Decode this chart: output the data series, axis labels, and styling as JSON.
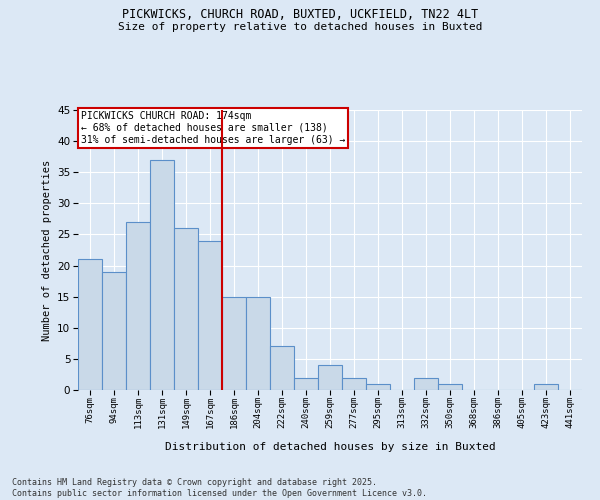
{
  "title_line1": "PICKWICKS, CHURCH ROAD, BUXTED, UCKFIELD, TN22 4LT",
  "title_line2": "Size of property relative to detached houses in Buxted",
  "xlabel": "Distribution of detached houses by size in Buxted",
  "ylabel": "Number of detached properties",
  "categories": [
    "76sqm",
    "94sqm",
    "113sqm",
    "131sqm",
    "149sqm",
    "167sqm",
    "186sqm",
    "204sqm",
    "222sqm",
    "240sqm",
    "259sqm",
    "277sqm",
    "295sqm",
    "313sqm",
    "332sqm",
    "350sqm",
    "368sqm",
    "386sqm",
    "405sqm",
    "423sqm",
    "441sqm"
  ],
  "values": [
    21,
    19,
    27,
    37,
    26,
    24,
    15,
    15,
    7,
    2,
    4,
    2,
    1,
    0,
    2,
    1,
    0,
    0,
    0,
    1,
    0
  ],
  "bar_color": "#c9d9e8",
  "bar_edge_color": "#5b8fc9",
  "vline_x": 5.5,
  "vline_color": "#cc0000",
  "annotation_text": "PICKWICKS CHURCH ROAD: 174sqm\n← 68% of detached houses are smaller (138)\n31% of semi-detached houses are larger (63) →",
  "annotation_box_color": "#ffffff",
  "annotation_box_edge_color": "#cc0000",
  "ylim": [
    0,
    45
  ],
  "yticks": [
    0,
    5,
    10,
    15,
    20,
    25,
    30,
    35,
    40,
    45
  ],
  "footer_line1": "Contains HM Land Registry data © Crown copyright and database right 2025.",
  "footer_line2": "Contains public sector information licensed under the Open Government Licence v3.0.",
  "background_color": "#dce8f5",
  "plot_background_color": "#dce8f5"
}
